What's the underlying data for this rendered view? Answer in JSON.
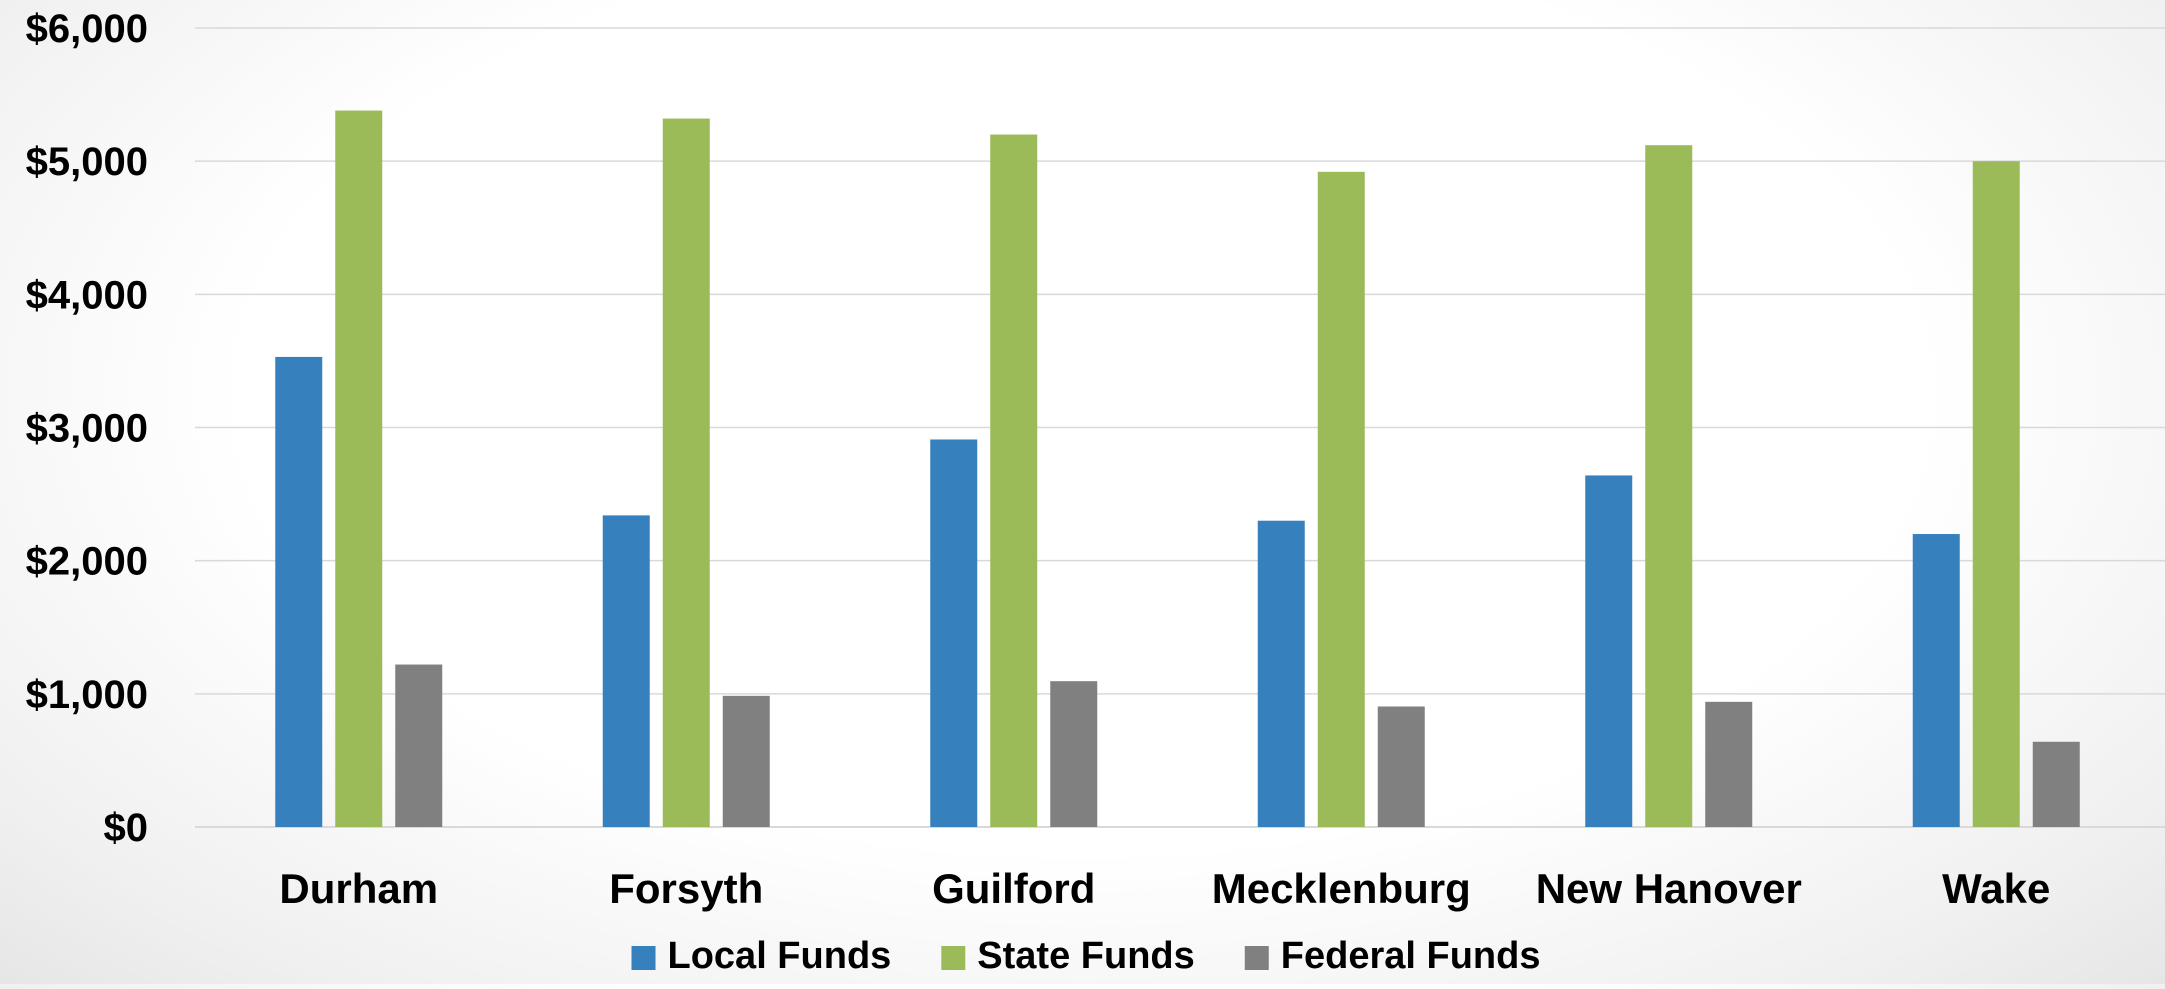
{
  "chart_data": {
    "type": "bar",
    "categories": [
      "Durham",
      "Forsyth",
      "Guilford",
      "Mecklenburg",
      "New Hanover",
      "Wake"
    ],
    "series": [
      {
        "name": "Local Funds",
        "values": [
          3530,
          2340,
          2910,
          2300,
          2640,
          2200
        ],
        "color": "#3680BD"
      },
      {
        "name": "State Funds",
        "values": [
          5380,
          5320,
          5200,
          4920,
          5120,
          5000
        ],
        "color": "#9BBB59"
      },
      {
        "name": "Federal Funds",
        "values": [
          1220,
          985,
          1095,
          905,
          940,
          640
        ],
        "color": "#808080"
      }
    ],
    "ylim": [
      0,
      6000
    ],
    "yticks": [
      0,
      1000,
      2000,
      3000,
      4000,
      5000,
      6000
    ],
    "ytick_labels": [
      "$0",
      "$1,000",
      "$2,000",
      "$3,000",
      "$4,000",
      "$5,000",
      "$6,000"
    ],
    "grid": true,
    "legend_position": "bottom",
    "gridline_color": "#d9d9d9"
  }
}
